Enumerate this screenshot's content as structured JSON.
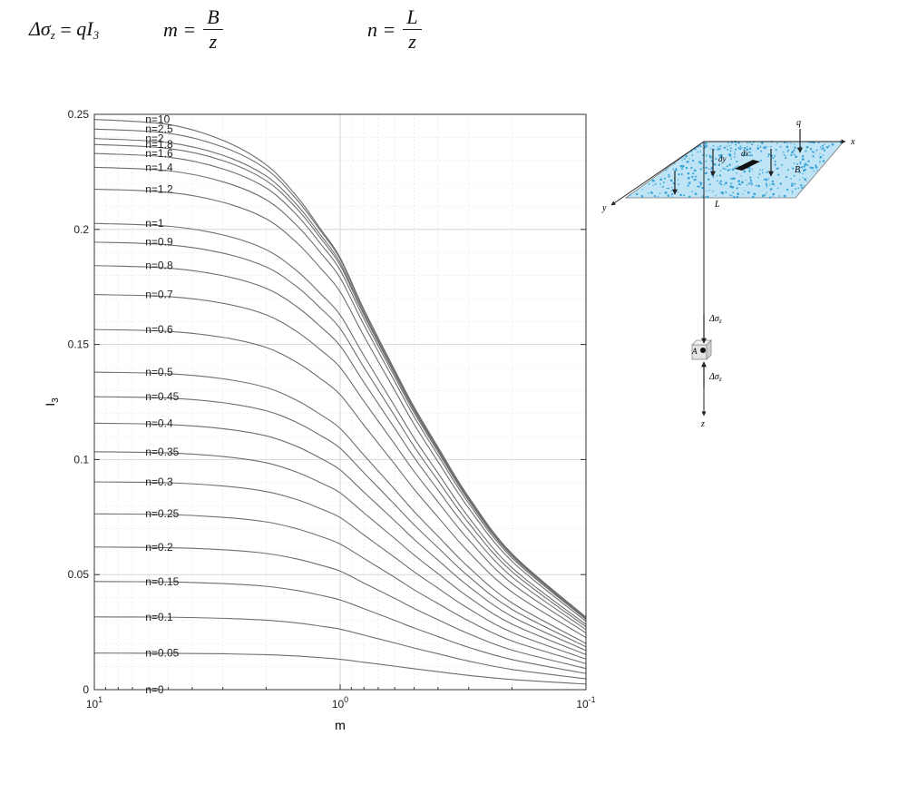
{
  "formulas": {
    "stress": {
      "lhs_symbol": "Δσ",
      "lhs_sub": "z",
      "rhs": "qI",
      "rhs_sub": "3"
    },
    "m": {
      "lhs": "m =",
      "numerator": "B",
      "denominator": "z"
    },
    "n": {
      "lhs": "n =",
      "numerator": "L",
      "denominator": "z"
    }
  },
  "chart_data": {
    "type": "line",
    "xlabel": "m",
    "ylabel": "I",
    "ylabel_sub": "3",
    "xscale": "log",
    "x_reversed": true,
    "xlim": [
      0.1,
      10
    ],
    "ylim": [
      0,
      0.25
    ],
    "xticks": [
      {
        "value": 10,
        "base": "10",
        "exp": "1"
      },
      {
        "value": 1,
        "base": "10",
        "exp": "0"
      },
      {
        "value": 0.1,
        "base": "10",
        "exp": "-1"
      }
    ],
    "yticks": [
      0,
      0.05,
      0.1,
      0.15,
      0.2,
      0.25
    ],
    "yticklabels": [
      "0",
      "0.05",
      "0.1",
      "0.15",
      "0.2",
      "0.25"
    ],
    "grid": true,
    "line_color": "#6e6e6e",
    "curve_samples": [
      10,
      5,
      3,
      2,
      1.5,
      1.2,
      1,
      0.8,
      0.6,
      0.5,
      0.4,
      0.3,
      0.2,
      0.1
    ],
    "series": [
      {
        "name": "n=0",
        "n": 0,
        "values": [
          0,
          0,
          0,
          0,
          0,
          0,
          0,
          0,
          0,
          0,
          0,
          0,
          0,
          0
        ]
      },
      {
        "name": "n=0.05",
        "n": 0.05,
        "values": [
          0.0159,
          0.0158,
          0.0156,
          0.0152,
          0.0146,
          0.0139,
          0.0132,
          0.0119,
          0.0102,
          0.0091,
          0.0078,
          0.0062,
          0.0044,
          0.0024
        ]
      },
      {
        "name": "n=0.1",
        "n": 0.1,
        "values": [
          0.0316,
          0.0315,
          0.031,
          0.0302,
          0.029,
          0.0276,
          0.0263,
          0.0237,
          0.0203,
          0.0181,
          0.0156,
          0.0124,
          0.0088,
          0.0047
        ]
      },
      {
        "name": "n=0.15",
        "n": 0.15,
        "values": [
          0.047,
          0.0468,
          0.0461,
          0.0449,
          0.0431,
          0.041,
          0.039,
          0.0352,
          0.0301,
          0.0268,
          0.0231,
          0.0184,
          0.0131,
          0.007
        ]
      },
      {
        "name": "n=0.2",
        "n": 0.2,
        "values": [
          0.062,
          0.0617,
          0.0608,
          0.0592,
          0.0568,
          0.0541,
          0.0515,
          0.0463,
          0.0397,
          0.0353,
          0.0304,
          0.0243,
          0.0172,
          0.0092
        ]
      },
      {
        "name": "n=0.25",
        "n": 0.25,
        "values": [
          0.0764,
          0.0761,
          0.0749,
          0.0729,
          0.0699,
          0.0666,
          0.0633,
          0.057,
          0.0488,
          0.0434,
          0.0374,
          0.0299,
          0.0212,
          0.0113
        ]
      },
      {
        "name": "n=0.3",
        "n": 0.3,
        "values": [
          0.0903,
          0.0899,
          0.0885,
          0.0861,
          0.0826,
          0.0786,
          0.0748,
          0.0672,
          0.0575,
          0.0512,
          0.0441,
          0.0352,
          0.0249,
          0.0133
        ]
      },
      {
        "name": "n=0.35",
        "n": 0.35,
        "values": [
          0.1034,
          0.1029,
          0.1013,
          0.0986,
          0.0945,
          0.0899,
          0.0855,
          0.0768,
          0.0657,
          0.0585,
          0.0504,
          0.0402,
          0.0285,
          0.0152
        ]
      },
      {
        "name": "n=0.4",
        "n": 0.4,
        "values": [
          0.1158,
          0.1152,
          0.1134,
          0.1103,
          0.1057,
          0.1005,
          0.0955,
          0.0858,
          0.0734,
          0.0653,
          0.0563,
          0.0449,
          0.0318,
          0.017
        ]
      },
      {
        "name": "n=0.45",
        "n": 0.45,
        "values": [
          0.1273,
          0.1267,
          0.1247,
          0.1212,
          0.1161,
          0.1104,
          0.1049,
          0.0942,
          0.0805,
          0.0716,
          0.0617,
          0.0492,
          0.0349,
          0.0186
        ]
      },
      {
        "name": "n=0.5",
        "n": 0.5,
        "values": [
          0.138,
          0.1373,
          0.1351,
          0.1313,
          0.1257,
          0.1195,
          0.1135,
          0.1019,
          0.087,
          0.0774,
          0.0667,
          0.0532,
          0.0377,
          0.0201
        ]
      },
      {
        "name": "n=0.6",
        "n": 0.6,
        "values": [
          0.1565,
          0.1557,
          0.1531,
          0.1487,
          0.1422,
          0.1351,
          0.1282,
          0.1149,
          0.098,
          0.0871,
          0.075,
          0.0598,
          0.0424,
          0.0226
        ]
      },
      {
        "name": "n=0.7",
        "n": 0.7,
        "values": [
          0.1717,
          0.1708,
          0.1679,
          0.1629,
          0.1556,
          0.1476,
          0.14,
          0.1253,
          0.1067,
          0.0948,
          0.0816,
          0.0651,
          0.0461,
          0.0246
        ]
      },
      {
        "name": "n=0.8",
        "n": 0.8,
        "values": [
          0.1843,
          0.1832,
          0.1799,
          0.1744,
          0.1664,
          0.1577,
          0.1494,
          0.1335,
          0.1136,
          0.1009,
          0.0868,
          0.0692,
          0.049,
          0.0261
        ]
      },
      {
        "name": "n=0.9",
        "n": 0.9,
        "values": [
          0.1945,
          0.1933,
          0.1897,
          0.1837,
          0.1751,
          0.1657,
          0.1569,
          0.14,
          0.119,
          0.1056,
          0.0909,
          0.0724,
          0.0513,
          0.0273
        ]
      },
      {
        "name": "n=1",
        "n": 1,
        "values": [
          0.2026,
          0.2014,
          0.1976,
          0.1912,
          0.182,
          0.172,
          0.1628,
          0.1451,
          0.1232,
          0.1093,
          0.0941,
          0.0749,
          0.053,
          0.0283
        ]
      },
      {
        "name": "n=1.2",
        "n": 1.2,
        "values": [
          0.2175,
          0.2161,
          0.2118,
          0.2046,
          0.1942,
          0.1831,
          0.1729,
          0.1536,
          0.1301,
          0.1153,
          0.0991,
          0.0789,
          0.0558,
          0.0297
        ]
      },
      {
        "name": "n=1.4",
        "n": 1.4,
        "values": [
          0.227,
          0.2255,
          0.2207,
          0.2129,
          0.2017,
          0.1898,
          0.1789,
          0.1585,
          0.1339,
          0.1186,
          0.1019,
          0.081,
          0.0573,
          0.0305
        ]
      },
      {
        "name": "n=1.6",
        "n": 1.6,
        "values": [
          0.233,
          0.2314,
          0.2263,
          0.218,
          0.2062,
          0.1937,
          0.1823,
          0.1612,
          0.136,
          0.1204,
          0.1034,
          0.0822,
          0.0581,
          0.0309
        ]
      },
      {
        "name": "n=1.8",
        "n": 1.8,
        "values": [
          0.2369,
          0.2352,
          0.2299,
          0.2212,
          0.209,
          0.1961,
          0.1844,
          0.1628,
          0.1372,
          0.1214,
          0.1042,
          0.0828,
          0.0585,
          0.0311
        ]
      },
      {
        "name": "n=2",
        "n": 2,
        "values": [
          0.2395,
          0.2377,
          0.2322,
          0.2232,
          0.2107,
          0.1975,
          0.1856,
          0.1637,
          0.1379,
          0.122,
          0.1047,
          0.0832,
          0.0588,
          0.0313
        ]
      },
      {
        "name": "n=2.5",
        "n": 2.5,
        "values": [
          0.2436,
          0.2418,
          0.2358,
          0.2262,
          0.2129,
          0.1993,
          0.1871,
          0.1648,
          0.1387,
          0.1226,
          0.1052,
          0.0836,
          0.059,
          0.0314
        ]
      },
      {
        "name": "n=10",
        "n": 10,
        "values": [
          0.2478,
          0.2456,
          0.2387,
          0.2281,
          0.2143,
          0.2001,
          0.1877,
          0.1652,
          0.1389,
          0.1228,
          0.1054,
          0.0837,
          0.0591,
          0.0315
        ]
      }
    ]
  },
  "diagram": {
    "labels": {
      "q": "q",
      "x": "x",
      "y": "y",
      "B": "B",
      "L": "L",
      "dx": "dx",
      "dy": "dy",
      "stress": "Δσ",
      "stress_sub": "z",
      "point": "A",
      "z": "z"
    },
    "fill_color": "#bfe4f5",
    "dot_color": "#3aa3d8"
  }
}
